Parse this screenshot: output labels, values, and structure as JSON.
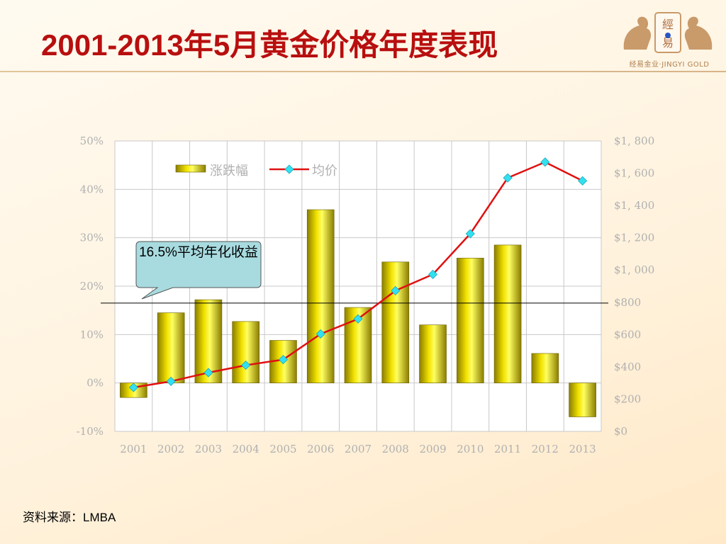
{
  "header": {
    "title": "2001-2013年5月黄金价格年度表现",
    "logo_text": "經易",
    "logo_caption": "经易金业·JINGYI GOLD"
  },
  "chart_data": {
    "type": "bar",
    "title": "",
    "xlabel": "",
    "ylabel": "",
    "categories": [
      "2001",
      "2002",
      "2003",
      "2004",
      "2005",
      "2006",
      "2007",
      "2008",
      "2009",
      "2010",
      "2011",
      "2012",
      "2013"
    ],
    "series": [
      {
        "name": "涨跌幅",
        "type": "bar",
        "axis": "left",
        "values": [
          -3,
          14.5,
          17.2,
          12.7,
          8.8,
          35.8,
          15.6,
          25.0,
          12.0,
          25.8,
          28.5,
          6.1,
          -7.0
        ]
      },
      {
        "name": "均价",
        "type": "line",
        "axis": "right",
        "values": [
          272,
          310,
          364,
          410,
          445,
          604,
          697,
          872,
          973,
          1225,
          1571,
          1669,
          1553
        ]
      }
    ],
    "left_axis": {
      "min": -10,
      "max": 50,
      "step": 10,
      "tick_labels": [
        "-10%",
        "0%",
        "10%",
        "20%",
        "30%",
        "40%",
        "50%"
      ]
    },
    "right_axis": {
      "min": 0,
      "max": 1800,
      "step": 200,
      "tick_labels": [
        "$0",
        "$200",
        "$400",
        "$600",
        "$800",
        "$1, 000",
        "$1, 200",
        "$1, 400",
        "$1, 600",
        "$1, 800"
      ]
    },
    "reference_line": {
      "axis": "left",
      "value": 16.5
    },
    "grid": true,
    "legend": "top-left"
  },
  "callout": {
    "text": "16.5%平均年化收益"
  },
  "footer": {
    "source": "资料来源：LMBA"
  },
  "colors": {
    "title": "#b80f0f",
    "bar": "#f2e200",
    "line": "#e01010",
    "marker": "#33e0f0",
    "grid": "#c8c8c8",
    "callout_fill": "#a8dbe0"
  }
}
